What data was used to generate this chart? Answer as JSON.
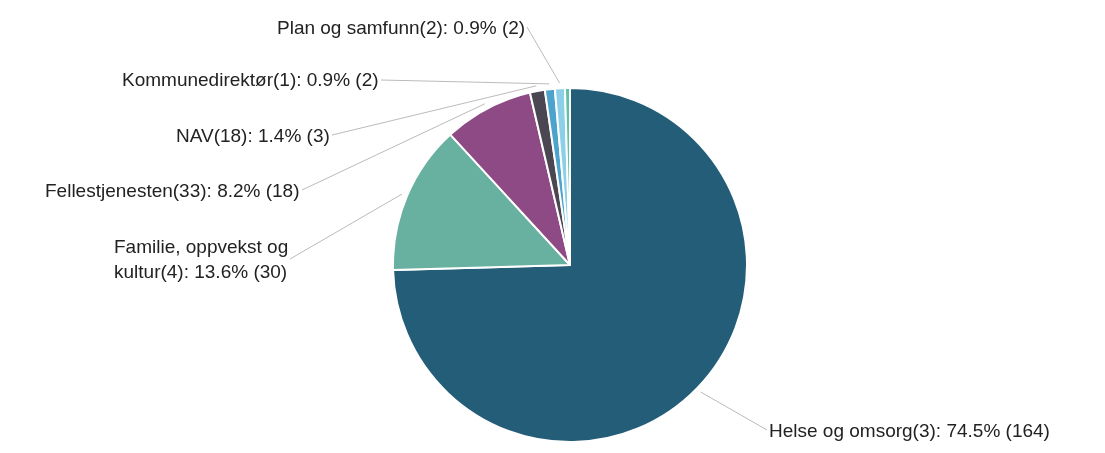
{
  "chart_data": {
    "type": "pie",
    "categories": [
      "Helse og omsorg(3)",
      "Familie, oppvekst og kultur(4)",
      "Fellestjenesten(33)",
      "NAV(18)",
      "Kommunedirektør(1)",
      "Plan og samfunn(2)",
      null
    ],
    "values": [
      164,
      30,
      18,
      3,
      2,
      2,
      1
    ],
    "colors": [
      "#245d78",
      "#68b0a0",
      "#8e4a85",
      "#4b4752",
      "#4da3cc",
      "#8ccfe8",
      "#5ec2a5"
    ],
    "value_labels": [
      "74.5% (164)",
      "13.6% (30)",
      "8.2% (18)",
      "1.4% (3)",
      "0.9% (2)",
      "0.9% (2)",
      null
    ],
    "legend": false
  }
}
